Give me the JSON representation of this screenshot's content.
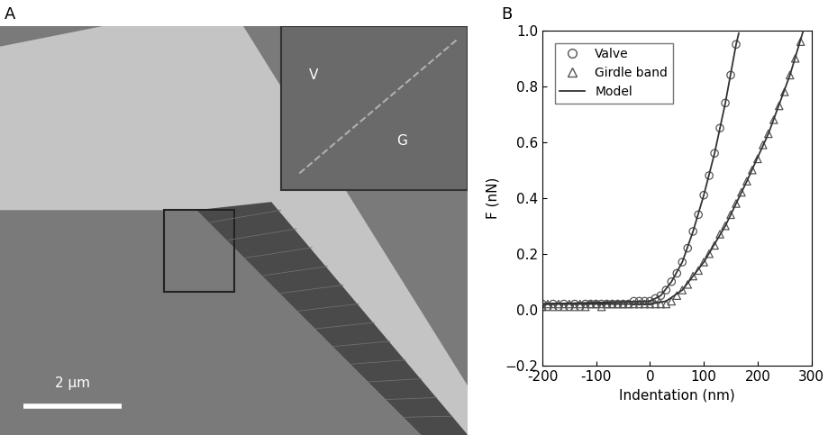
{
  "image": {
    "title": "A",
    "regions": [
      "V",
      "G"
    ],
    "scale_bar": "2 μm"
  },
  "chart_data": {
    "type": "scatter",
    "title": "B",
    "x_label": "Indentation (nm)",
    "y_label": "F (nN)",
    "xlim": [
      -200,
      300
    ],
    "xticks": [
      -200,
      -100,
      0,
      100,
      200,
      300
    ],
    "ylim": [
      -0.2,
      1.0
    ],
    "yticks": [
      {
        "value": -0.2,
        "label": "−0.2"
      },
      {
        "value": 0.0,
        "label": "0.0"
      },
      {
        "value": 0.2,
        "label": "0.2"
      },
      {
        "value": 0.4,
        "label": "0.4"
      },
      {
        "value": 0.6,
        "label": "0.6"
      },
      {
        "value": 0.8,
        "label": "0.8"
      },
      {
        "value": 1.0,
        "label": "1.0"
      }
    ],
    "legend": "upper left",
    "grid": false,
    "series": [
      {
        "name": "Valve",
        "type": "scatter",
        "marker": "circle",
        "color": "#555555",
        "x": [
          -200,
          -190,
          -180,
          -170,
          -160,
          -150,
          -140,
          -130,
          -120,
          -110,
          -100,
          -90,
          -80,
          -70,
          -60,
          -50,
          -40,
          -30,
          -20,
          -10,
          0,
          10,
          20,
          30,
          40,
          50,
          60,
          70,
          80,
          90,
          100,
          110,
          120,
          130,
          140,
          150,
          160
        ],
        "values": [
          0.02,
          0.01,
          0.02,
          0.01,
          0.02,
          0.01,
          0.02,
          0.01,
          0.02,
          0.02,
          0.02,
          0.02,
          0.02,
          0.02,
          0.02,
          0.02,
          0.02,
          0.03,
          0.03,
          0.03,
          0.03,
          0.04,
          0.05,
          0.07,
          0.1,
          0.13,
          0.17,
          0.22,
          0.28,
          0.34,
          0.41,
          0.48,
          0.56,
          0.65,
          0.74,
          0.84,
          0.95
        ]
      },
      {
        "name": "Girdle band",
        "type": "scatter",
        "marker": "triangle",
        "color": "#555555",
        "x": [
          -200,
          -190,
          -180,
          -170,
          -160,
          -150,
          -140,
          -130,
          -120,
          -110,
          -100,
          -90,
          -80,
          -70,
          -60,
          -50,
          -40,
          -30,
          -20,
          -10,
          0,
          10,
          20,
          30,
          40,
          50,
          60,
          70,
          80,
          90,
          100,
          110,
          120,
          130,
          140,
          150,
          160,
          170,
          180,
          190,
          200,
          210,
          220,
          230,
          240,
          250,
          260,
          270,
          280
        ],
        "values": [
          0.01,
          0.02,
          0.01,
          0.02,
          0.01,
          0.02,
          0.01,
          0.02,
          0.01,
          0.02,
          0.02,
          0.01,
          0.02,
          0.02,
          0.02,
          0.02,
          0.02,
          0.02,
          0.02,
          0.02,
          0.02,
          0.02,
          0.02,
          0.02,
          0.03,
          0.05,
          0.07,
          0.09,
          0.12,
          0.14,
          0.17,
          0.2,
          0.23,
          0.27,
          0.3,
          0.34,
          0.38,
          0.42,
          0.46,
          0.5,
          0.54,
          0.59,
          0.63,
          0.68,
          0.73,
          0.78,
          0.84,
          0.9,
          0.96
        ]
      },
      {
        "name": "Model",
        "type": "line",
        "line_style": "solid",
        "color": "#333333",
        "x": [
          -200,
          0,
          20,
          40,
          60,
          80,
          100,
          120,
          140,
          160,
          165,
          null,
          -200,
          0,
          30,
          60,
          100,
          140,
          180,
          220,
          260,
          285
        ],
        "values": [
          0.02,
          0.03,
          0.05,
          0.1,
          0.17,
          0.28,
          0.41,
          0.56,
          0.74,
          0.95,
          0.99,
          null,
          0.02,
          0.02,
          0.03,
          0.07,
          0.17,
          0.3,
          0.46,
          0.63,
          0.84,
          1.0
        ]
      }
    ]
  }
}
